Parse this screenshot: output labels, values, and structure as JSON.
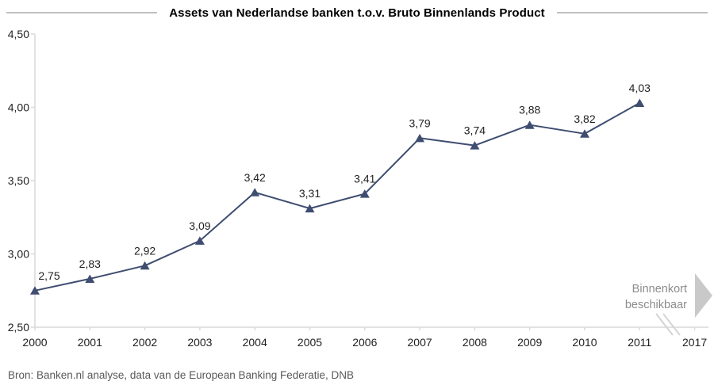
{
  "title": "Assets van Nederlandse banken t.o.v. Bruto Binnenlands Product",
  "annotation": {
    "line1": "Binnenkort",
    "line2": "beschikbaar",
    "arrow_icon": "chevron-right"
  },
  "source": "Bron: Banken.nl analyse, data van de European Banking Federatie, DNB",
  "colors": {
    "background": "#FFFFFF",
    "series": "#3E4D70",
    "axis": "#D9D9D9",
    "tick_label": "#1F1F1F",
    "data_label": "#1F1F1F",
    "title_text": "#000000",
    "title_rule": "#BFBFBF",
    "annotation_text": "#8C8C8C",
    "arrow": "#C9C9C9",
    "source_text": "#595959",
    "break_mark": "#D4D4D4"
  },
  "chart_data": {
    "type": "line",
    "title": "Assets van Nederlandse banken t.o.v. Bruto Binnenlands Product",
    "categories": [
      "2000",
      "2001",
      "2002",
      "2003",
      "2004",
      "2005",
      "2006",
      "2007",
      "2008",
      "2009",
      "2010",
      "2011"
    ],
    "values": [
      2.75,
      2.83,
      2.92,
      3.09,
      3.42,
      3.31,
      3.41,
      3.79,
      3.74,
      3.88,
      3.82,
      4.03
    ],
    "value_labels": [
      "2,75",
      "2,83",
      "2,92",
      "3,09",
      "3,42",
      "3,31",
      "3,41",
      "3,79",
      "3,74",
      "3,88",
      "3,82",
      "4,03"
    ],
    "x_tick_labels": [
      "2000",
      "2001",
      "2002",
      "2003",
      "2004",
      "2005",
      "2006",
      "2007",
      "2008",
      "2009",
      "2010",
      "2011",
      "2017"
    ],
    "axis_break_between": [
      "2011",
      "2017"
    ],
    "y_axis": {
      "min": 2.5,
      "max": 4.5,
      "tick_values": [
        2.5,
        3.0,
        3.5,
        4.0,
        4.5
      ],
      "tick_labels": [
        "2,50",
        "3,00",
        "3,50",
        "4,00",
        "4,50"
      ]
    },
    "xlabel": "",
    "ylabel": "",
    "grid": false,
    "legend": false,
    "marker": "triangle-up",
    "annotation": "Binnenkort beschikbaar"
  }
}
